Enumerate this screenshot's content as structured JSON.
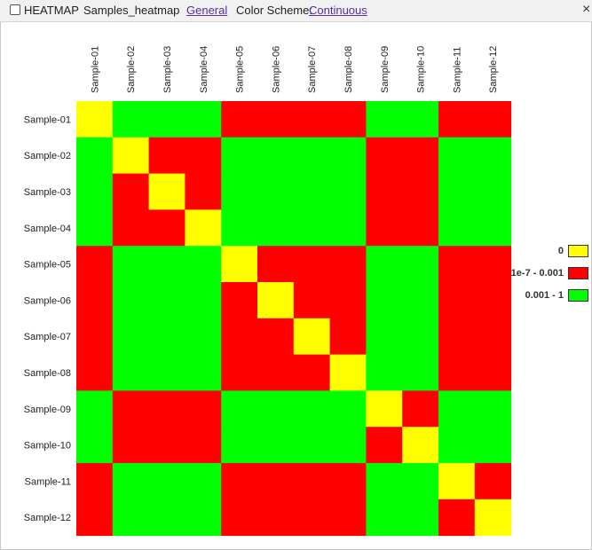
{
  "toolbar": {
    "title": "HEATMAP",
    "dataset": "Samples_heatmap",
    "general_link": "General",
    "color_scheme_label": "Color Scheme:",
    "color_scheme_link": "Continuous",
    "close_glyph": "×"
  },
  "chart_data": {
    "type": "heatmap",
    "rows": [
      "Sample-01",
      "Sample-02",
      "Sample-03",
      "Sample-04",
      "Sample-05",
      "Sample-06",
      "Sample-07",
      "Sample-08",
      "Sample-09",
      "Sample-10",
      "Sample-11",
      "Sample-12"
    ],
    "columns": [
      "Sample-01",
      "Sample-02",
      "Sample-03",
      "Sample-04",
      "Sample-05",
      "Sample-06",
      "Sample-07",
      "Sample-08",
      "Sample-09",
      "Sample-10",
      "Sample-11",
      "Sample-12"
    ],
    "category_matrix": [
      [
        0,
        2,
        2,
        2,
        1,
        1,
        1,
        1,
        2,
        2,
        1,
        1
      ],
      [
        2,
        0,
        1,
        1,
        2,
        2,
        2,
        2,
        1,
        1,
        2,
        2
      ],
      [
        2,
        1,
        0,
        1,
        2,
        2,
        2,
        2,
        1,
        1,
        2,
        2
      ],
      [
        2,
        1,
        1,
        0,
        2,
        2,
        2,
        2,
        1,
        1,
        2,
        2
      ],
      [
        1,
        2,
        2,
        2,
        0,
        1,
        1,
        1,
        2,
        2,
        1,
        1
      ],
      [
        1,
        2,
        2,
        2,
        1,
        0,
        1,
        1,
        2,
        2,
        1,
        1
      ],
      [
        1,
        2,
        2,
        2,
        1,
        1,
        0,
        1,
        2,
        2,
        1,
        1
      ],
      [
        1,
        2,
        2,
        2,
        1,
        1,
        1,
        0,
        2,
        2,
        1,
        1
      ],
      [
        2,
        1,
        1,
        1,
        2,
        2,
        2,
        2,
        0,
        1,
        2,
        2
      ],
      [
        2,
        1,
        1,
        1,
        2,
        2,
        2,
        2,
        1,
        0,
        2,
        2
      ],
      [
        1,
        2,
        2,
        2,
        1,
        1,
        1,
        1,
        2,
        2,
        0,
        1
      ],
      [
        1,
        2,
        2,
        2,
        1,
        1,
        1,
        1,
        2,
        2,
        1,
        0
      ]
    ],
    "legend": [
      {
        "label": "0",
        "color": "#ffff00"
      },
      {
        "label": "1e-7 - 0.001",
        "color": "#ff0000"
      },
      {
        "label": "0.001 - 1",
        "color": "#00ff00"
      }
    ],
    "legend_position": "right"
  }
}
